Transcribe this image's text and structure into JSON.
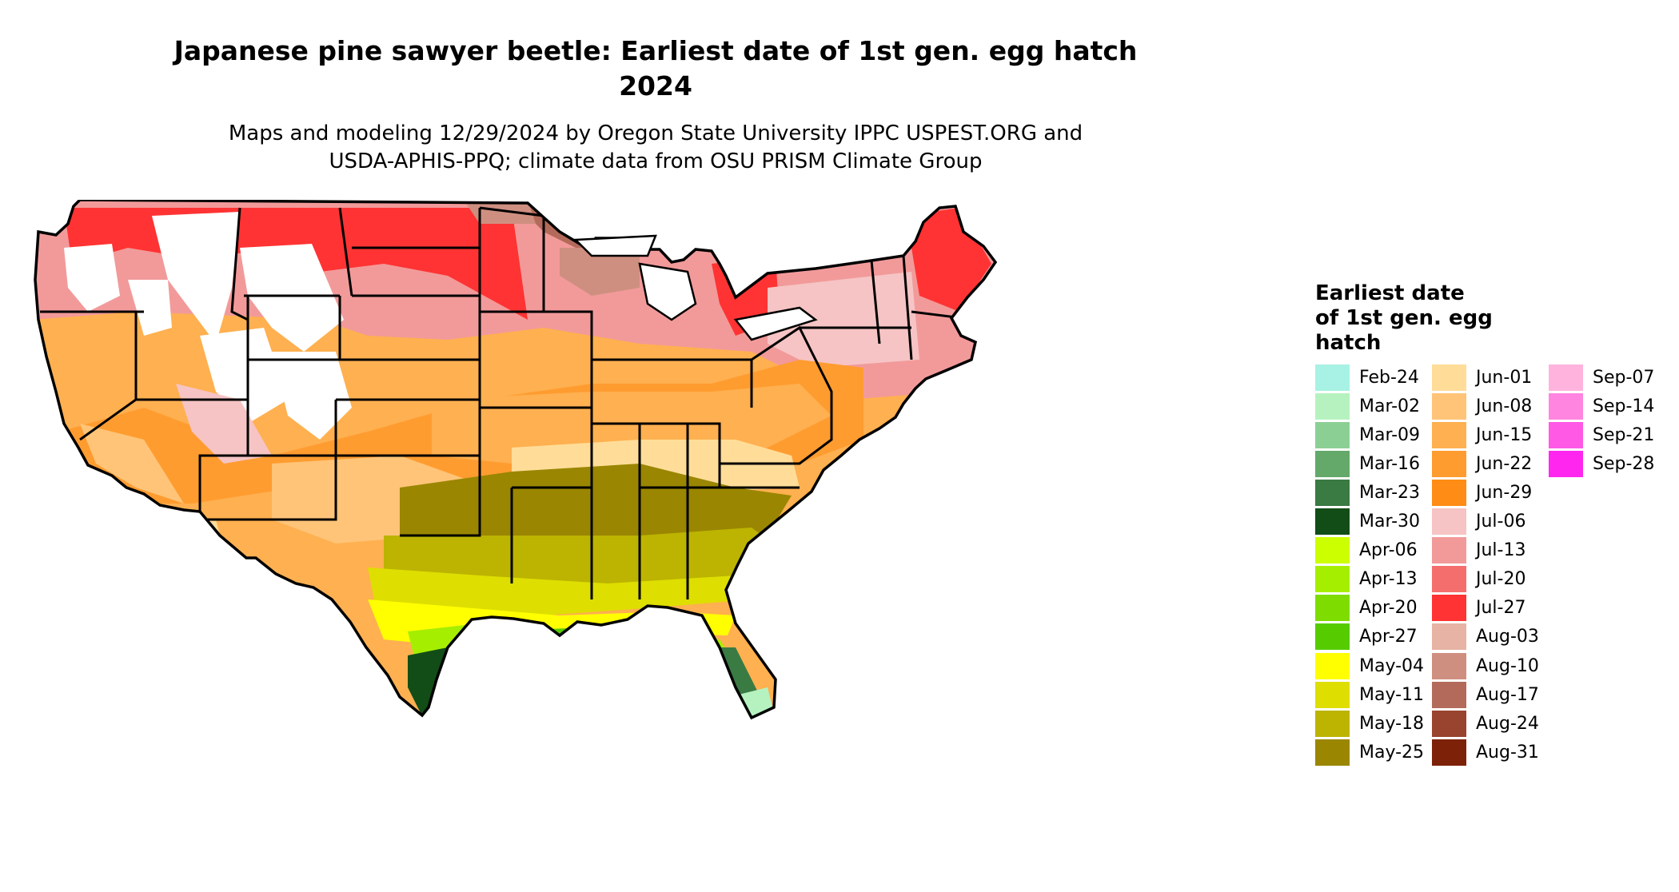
{
  "title_line1": "Japanese pine sawyer beetle: Earliest date of 1st gen. egg hatch",
  "title_line2": "2024",
  "subtitle_line1": "Maps and modeling 12/29/2024 by Oregon State University IPPC USPEST.ORG and",
  "subtitle_line2": "USDA-APHIS-PPQ; climate data from OSU PRISM Climate Group",
  "legend": {
    "title_line1": "Earliest date",
    "title_line2": "of 1st gen. egg",
    "title_line3": "hatch",
    "items": [
      {
        "label": "Feb-24",
        "color": "#a7f2e4"
      },
      {
        "label": "Mar-02",
        "color": "#b6f2c0"
      },
      {
        "label": "Mar-09",
        "color": "#8ccf95"
      },
      {
        "label": "Mar-16",
        "color": "#64a86a"
      },
      {
        "label": "Mar-23",
        "color": "#3a7a43"
      },
      {
        "label": "Mar-30",
        "color": "#124d17"
      },
      {
        "label": "Apr-06",
        "color": "#ccff00"
      },
      {
        "label": "Apr-13",
        "color": "#a6ee00"
      },
      {
        "label": "Apr-20",
        "color": "#7fdc00"
      },
      {
        "label": "Apr-27",
        "color": "#56cc00"
      },
      {
        "label": "May-04",
        "color": "#ffff00"
      },
      {
        "label": "May-11",
        "color": "#dede00"
      },
      {
        "label": "May-18",
        "color": "#bcb400"
      },
      {
        "label": "May-25",
        "color": "#9a8600"
      },
      {
        "label": "Jun-01",
        "color": "#ffdd99"
      },
      {
        "label": "Jun-08",
        "color": "#ffc478"
      },
      {
        "label": "Jun-15",
        "color": "#ffb050"
      },
      {
        "label": "Jun-22",
        "color": "#ff9c30"
      },
      {
        "label": "Jun-29",
        "color": "#ff8c14"
      },
      {
        "label": "Jul-06",
        "color": "#f6c4c4"
      },
      {
        "label": "Jul-13",
        "color": "#f29a9a"
      },
      {
        "label": "Jul-20",
        "color": "#f56e6e"
      },
      {
        "label": "Jul-27",
        "color": "#ff3333"
      },
      {
        "label": "Aug-03",
        "color": "#e6b3a4"
      },
      {
        "label": "Aug-10",
        "color": "#cf8f80"
      },
      {
        "label": "Aug-17",
        "color": "#b46a5a"
      },
      {
        "label": "Aug-24",
        "color": "#99442f"
      },
      {
        "label": "Aug-31",
        "color": "#7d2208"
      },
      {
        "label": "Sep-07",
        "color": "#ffb3dd"
      },
      {
        "label": "Sep-14",
        "color": "#ff85e0"
      },
      {
        "label": "Sep-21",
        "color": "#ff59e6"
      },
      {
        "label": "Sep-28",
        "color": "#ff26f0"
      }
    ]
  }
}
